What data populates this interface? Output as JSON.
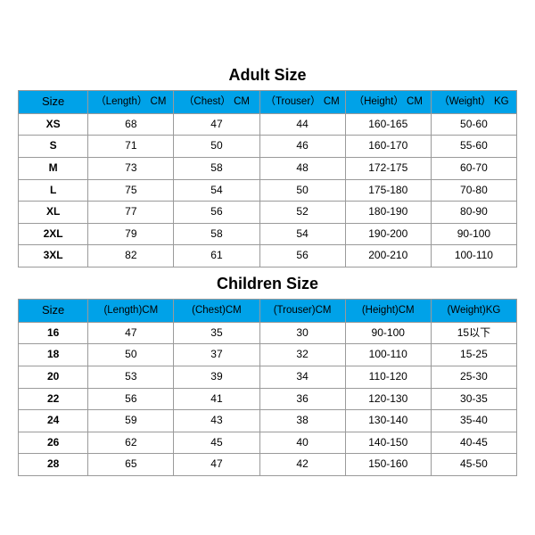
{
  "adult": {
    "title": "Adult Size",
    "title_fontsize": 18,
    "header_bg": "#00a2e8",
    "border_color": "#9a9a9a",
    "background_color": "#ffffff",
    "columns": [
      "Size",
      "（Length） CM",
      "（Chest） CM",
      "（Trouser） CM",
      "（Height） CM",
      "（Weight） KG"
    ],
    "col_widths_pct": [
      14,
      17.2,
      17.2,
      17.2,
      17.2,
      17.2
    ],
    "rows": [
      [
        "XS",
        "68",
        "47",
        "44",
        "160-165",
        "50-60"
      ],
      [
        "S",
        "71",
        "50",
        "46",
        "160-170",
        "55-60"
      ],
      [
        "M",
        "73",
        "58",
        "48",
        "172-175",
        "60-70"
      ],
      [
        "L",
        "75",
        "54",
        "50",
        "175-180",
        "70-80"
      ],
      [
        "XL",
        "77",
        "56",
        "52",
        "180-190",
        "80-90"
      ],
      [
        "2XL",
        "79",
        "58",
        "54",
        "190-200",
        "90-100"
      ],
      [
        "3XL",
        "82",
        "61",
        "56",
        "200-210",
        "100-110"
      ]
    ]
  },
  "children": {
    "title": "Children Size",
    "title_fontsize": 18,
    "header_bg": "#00a2e8",
    "border_color": "#9a9a9a",
    "background_color": "#ffffff",
    "columns": [
      "Size",
      "(Length)CM",
      "(Chest)CM",
      "(Trouser)CM",
      "(Height)CM",
      "(Weight)KG"
    ],
    "col_widths_pct": [
      14,
      17.2,
      17.2,
      17.2,
      17.2,
      17.2
    ],
    "rows": [
      [
        "16",
        "47",
        "35",
        "30",
        "90-100",
        "15以下"
      ],
      [
        "18",
        "50",
        "37",
        "32",
        "100-110",
        "15-25"
      ],
      [
        "20",
        "53",
        "39",
        "34",
        "110-120",
        "25-30"
      ],
      [
        "22",
        "56",
        "41",
        "36",
        "120-130",
        "30-35"
      ],
      [
        "24",
        "59",
        "43",
        "38",
        "130-140",
        "35-40"
      ],
      [
        "26",
        "62",
        "45",
        "40",
        "140-150",
        "40-45"
      ],
      [
        "28",
        "65",
        "47",
        "42",
        "150-160",
        "45-50"
      ]
    ]
  }
}
